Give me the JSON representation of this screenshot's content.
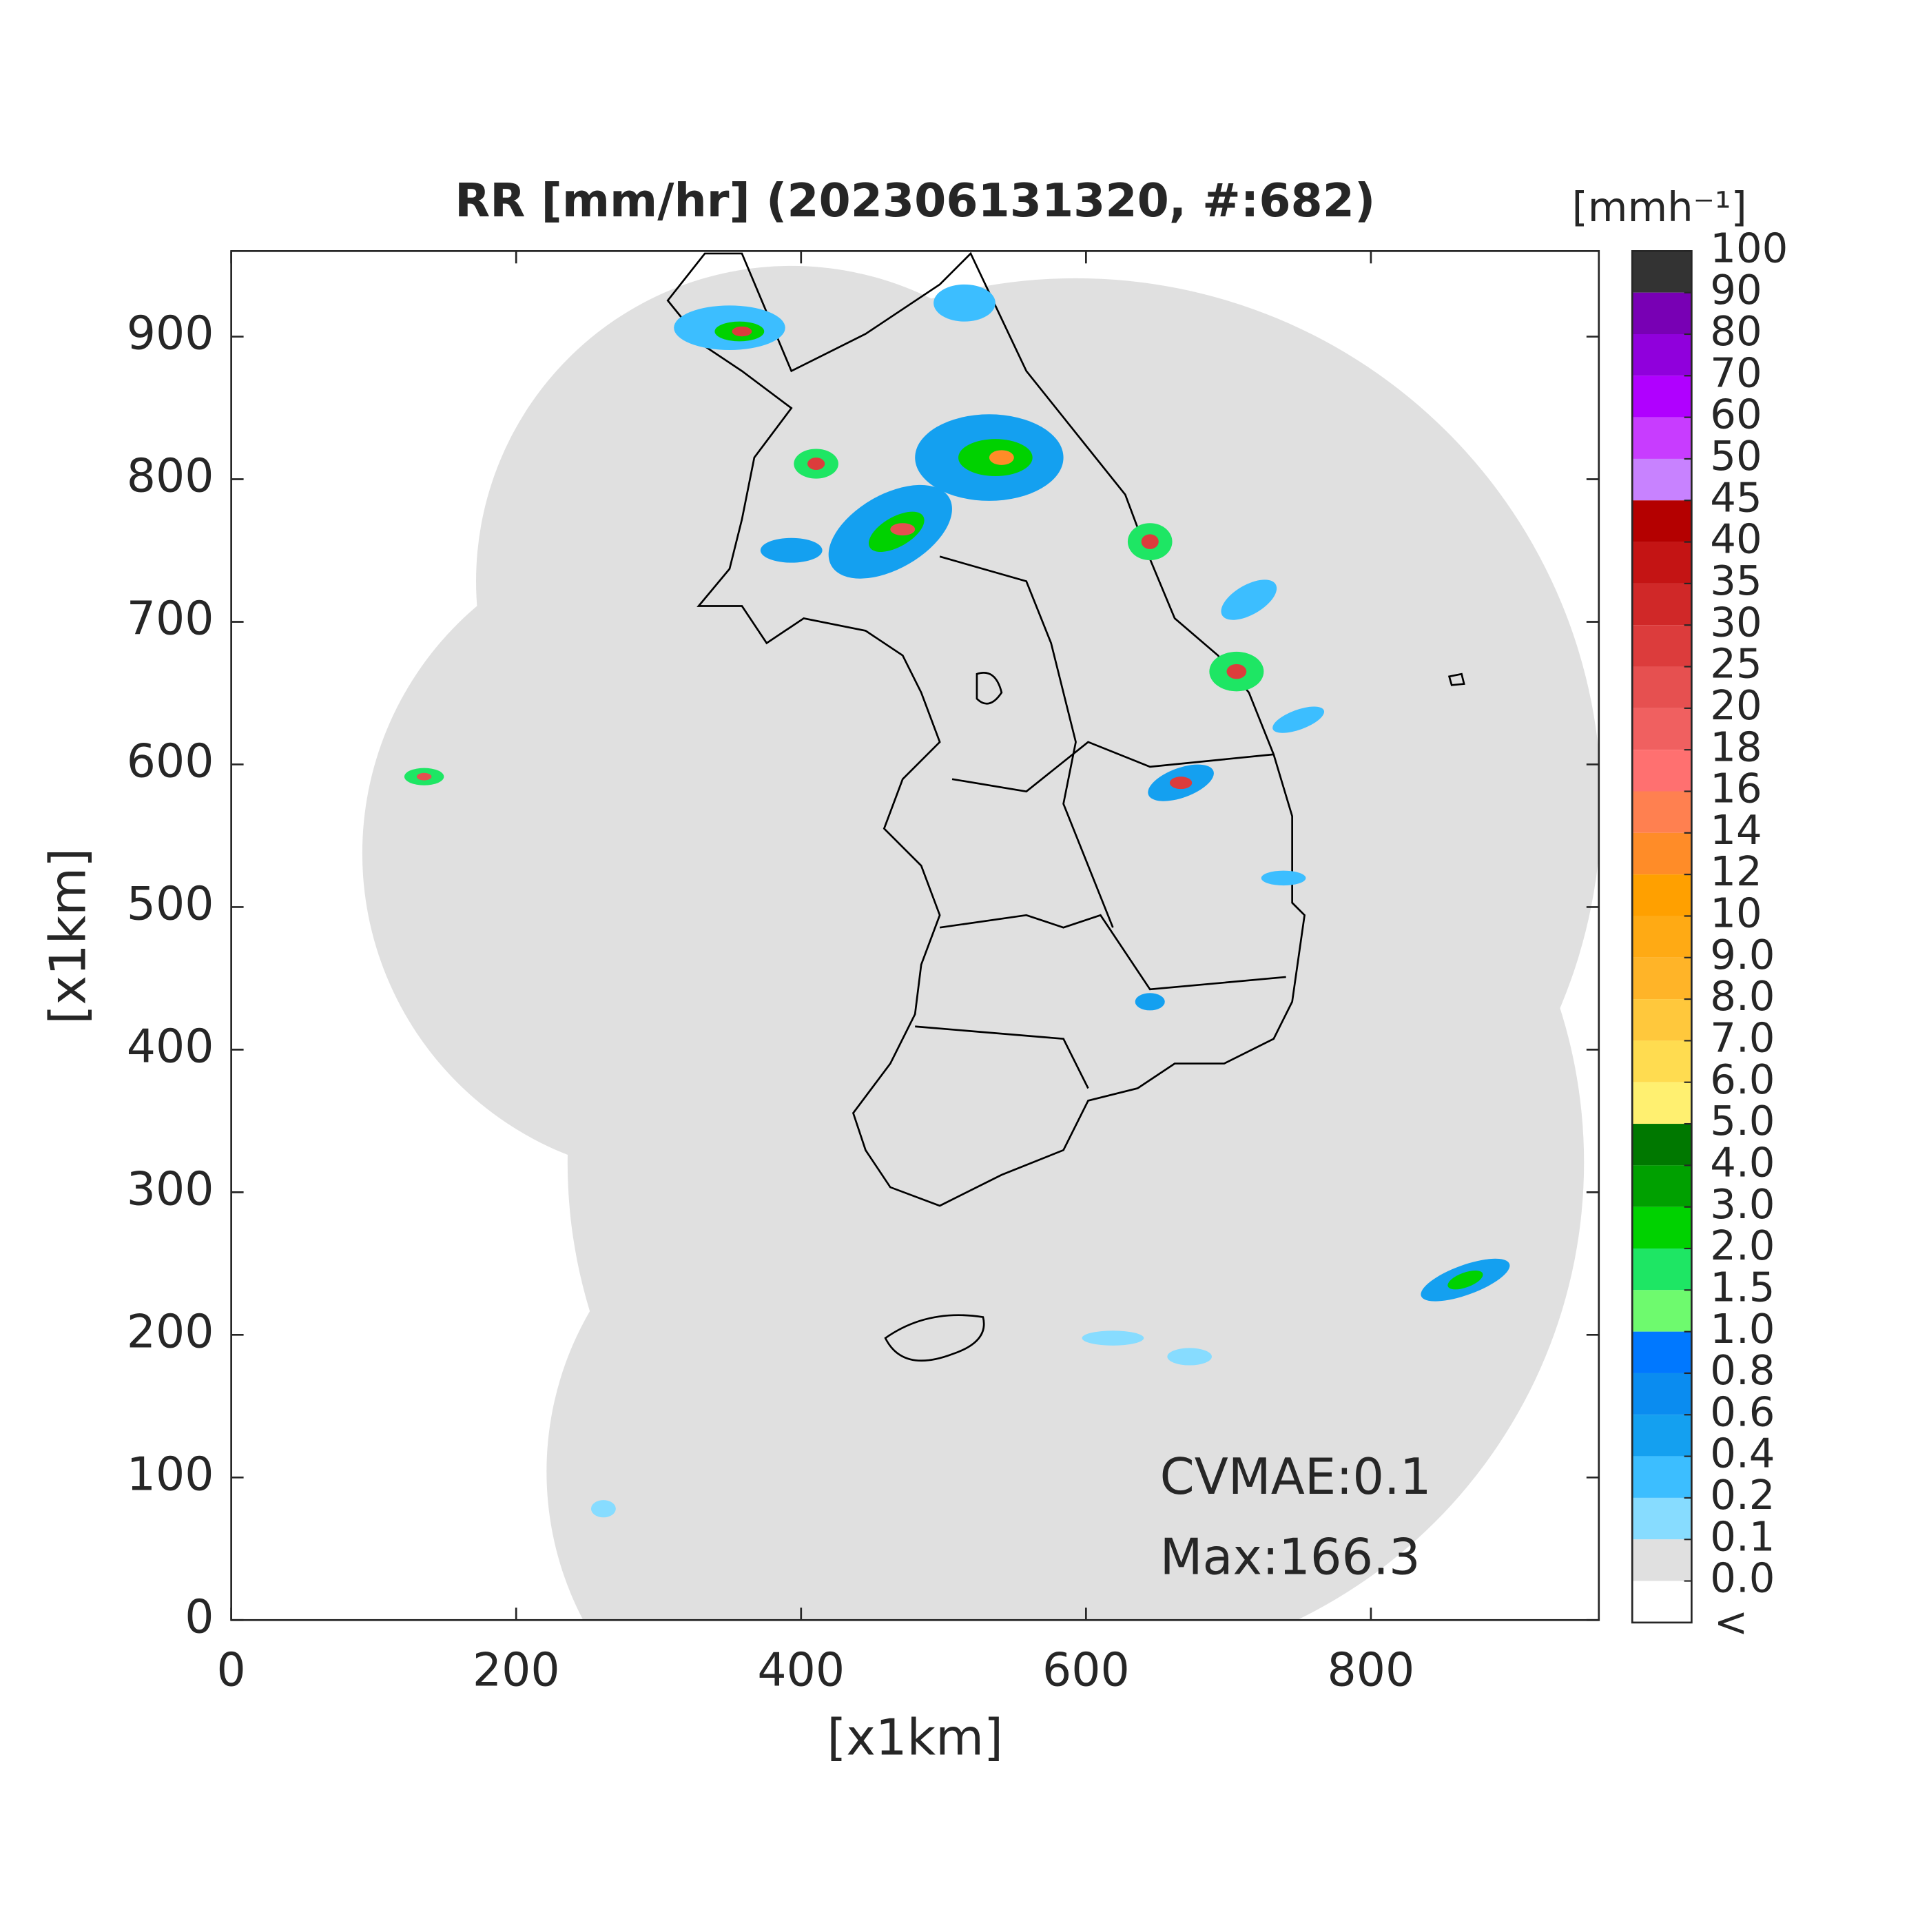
{
  "title": "RR [mm/hr] (202306131320, #:682)",
  "x_axis": {
    "label": "[x1km]",
    "lim": [
      0,
      960
    ],
    "ticks": [
      0,
      200,
      400,
      600,
      800
    ]
  },
  "y_axis": {
    "label": "[x1km]",
    "lim": [
      0,
      960
    ],
    "ticks": [
      0,
      100,
      200,
      300,
      400,
      500,
      600,
      700,
      800,
      900
    ]
  },
  "colorbar": {
    "unit": "[mmh⁻¹]",
    "ticks": [
      100,
      90,
      80,
      70,
      60,
      50,
      45,
      40,
      35,
      30,
      25,
      20,
      18,
      16,
      14,
      12,
      10,
      {
        "value": 9,
        "label": "9.0"
      },
      {
        "value": 8,
        "label": "8.0"
      },
      {
        "value": 7,
        "label": "7.0"
      },
      {
        "value": 6,
        "label": "6.0"
      },
      {
        "value": 5,
        "label": "5.0"
      },
      {
        "value": 4,
        "label": "4.0"
      },
      {
        "value": 3,
        "label": "3.0"
      },
      {
        "value": 2,
        "label": "2.0"
      },
      1.5,
      {
        "value": 1,
        "label": "1.0"
      },
      0.8,
      0.6,
      0.4,
      0.2,
      0.1,
      {
        "value": 0,
        "label": "0.0"
      }
    ],
    "under_label": "<",
    "colors": [
      "#333333",
      "#7800b4",
      "#9000dc",
      "#b000ff",
      "#c83cff",
      "#c882ff",
      "#b40000",
      "#c41414",
      "#d02828",
      "#dc3c3c",
      "#e65050",
      "#f06060",
      "#ff7070",
      "#ff8050",
      "#ff8c28",
      "#ffa000",
      "#ffaa14",
      "#ffb428",
      "#ffc83c",
      "#ffdc50",
      "#fff070",
      "#007800",
      "#00a000",
      "#00d200",
      "#1ee664",
      "#6efa6e",
      "#0078ff",
      "#0a8cf0",
      "#14a0f0",
      "#3cbeff",
      "#87dcff",
      "#e0e0e0",
      "#ffffff"
    ]
  },
  "annotations": [
    "CVMAE:0.1",
    "Max:166.3"
  ]
}
